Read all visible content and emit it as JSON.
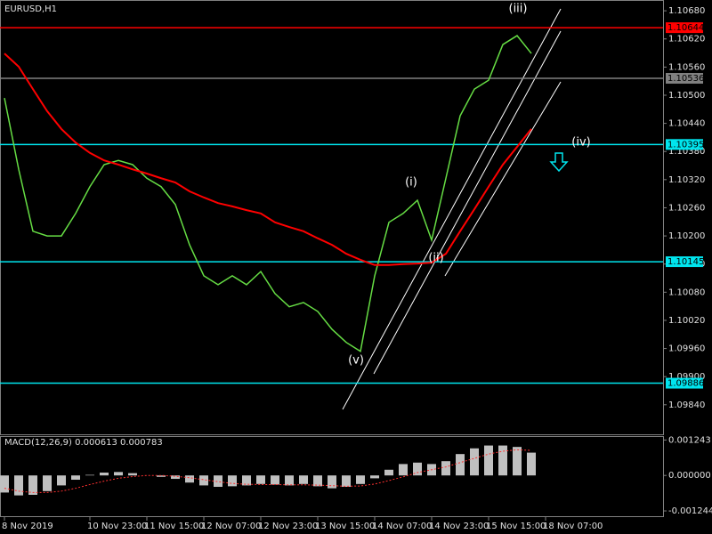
{
  "chart_data": [
    {
      "type": "line",
      "title": "EURUSD,H1",
      "ylim": [
        1.09777,
        1.10703
      ],
      "yticks": [
        {
          "value": 1.1068,
          "label": "1.10680"
        },
        {
          "value": 1.1062,
          "label": "1.10620"
        },
        {
          "value": 1.1056,
          "label": "1.10560"
        },
        {
          "value": 1.105,
          "label": "1.10500"
        },
        {
          "value": 1.1044,
          "label": "1.10440"
        },
        {
          "value": 1.1038,
          "label": "1.10380"
        },
        {
          "value": 1.1032,
          "label": "1.10320"
        },
        {
          "value": 1.1026,
          "label": "1.10260"
        },
        {
          "value": 1.102,
          "label": "1.10200"
        },
        {
          "value": 1.1014,
          "label": "1.10140"
        },
        {
          "value": 1.1008,
          "label": "1.10080"
        },
        {
          "value": 1.1002,
          "label": "1.10020"
        },
        {
          "value": 1.0996,
          "label": "1.09960"
        },
        {
          "value": 1.099,
          "label": "1.09900"
        },
        {
          "value": 1.0984,
          "label": "1.09840"
        }
      ],
      "grid": false,
      "series": [
        {
          "color": "#66dd44",
          "values": [
            1.10494,
            1.10342,
            1.1021,
            1.102,
            1.102,
            1.10248,
            1.10305,
            1.10352,
            1.10361,
            1.10352,
            1.10323,
            1.10305,
            1.10267,
            1.10181,
            1.10115,
            1.10096,
            1.10115,
            1.10096,
            1.10124,
            1.10077,
            1.10049,
            1.10058,
            1.10039,
            1.10001,
            1.09973,
            1.09954,
            1.10115,
            1.10229,
            1.10248,
            1.10276,
            1.10191,
            1.10323,
            1.10456,
            1.10513,
            1.10532,
            1.10608,
            1.10627,
            1.10589,
            null
          ]
        },
        {
          "color": "#ff0000",
          "values": [
            1.10589,
            1.10561,
            1.10513,
            1.10466,
            1.10428,
            1.10399,
            1.10377,
            1.10361,
            1.10352,
            1.10342,
            1.10333,
            1.10323,
            1.10314,
            1.10295,
            1.10282,
            1.1027,
            1.10263,
            1.10255,
            1.10248,
            1.10229,
            1.10219,
            1.1021,
            1.10195,
            1.10181,
            1.10162,
            1.10149,
            1.10138,
            1.10138,
            1.1014,
            1.10141,
            1.10143,
            1.10162,
            1.1021,
            1.10257,
            1.10305,
            1.10352,
            1.1039,
            1.10428,
            null
          ]
        }
      ],
      "levels": [
        {
          "value": 1.10644,
          "color": "#ff0000"
        },
        {
          "value": 1.10536,
          "color": "#808080"
        },
        {
          "value": 1.10395,
          "color": "#00e5ee"
        },
        {
          "value": 1.10145,
          "color": "#00e5ee"
        },
        {
          "value": 1.09886,
          "color": "#00e5ee"
        }
      ],
      "annotations": [
        "(i)",
        "(ii)",
        "(iii)",
        "(iv)",
        "(v)"
      ]
    },
    {
      "type": "bar",
      "title": "MACD(12,26,9) 0.000613 0.000783",
      "categories": [
        "8 Nov 2019",
        null,
        null,
        null,
        null,
        null,
        "10 Nov 23:00",
        null,
        null,
        null,
        "11 Nov 15:00",
        null,
        null,
        null,
        "12 Nov 07:00",
        null,
        null,
        null,
        "12 Nov 23:00",
        null,
        null,
        null,
        "13 Nov 15:00",
        null,
        null,
        null,
        "14 Nov 07:00",
        null,
        null,
        null,
        "14 Nov 23:00",
        null,
        null,
        null,
        "15 Nov 15:00",
        null,
        null,
        null,
        "18 Nov 07:00"
      ],
      "ylim": [
        -0.00143,
        0.00138
      ],
      "yticks": [
        0.001243,
        {
          "value": 0,
          "label": "0.000000"
        },
        -0.001244
      ],
      "color": "#c0c0c0",
      "values": [
        -0.0006,
        -0.0007,
        -0.00068,
        -0.00055,
        -0.00035,
        -0.00015,
        2e-05,
        0.0001,
        0.00012,
        8e-05,
        0.0,
        -5e-05,
        -0.00012,
        -0.00025,
        -0.00035,
        -0.0004,
        -0.00038,
        -0.00035,
        -0.0003,
        -0.00032,
        -0.00035,
        -0.0003,
        -0.00038,
        -0.00045,
        -0.0004,
        -0.0003,
        -0.0001,
        0.0002,
        0.0004,
        0.00045,
        0.0004,
        0.0005,
        0.00075,
        0.00095,
        0.00105,
        0.00105,
        0.001,
        0.0008,
        null
      ],
      "signal": {
        "color": "#ff3030",
        "values": [
          -0.00045,
          -0.00055,
          -0.0006,
          -0.0006,
          -0.00055,
          -0.00045,
          -0.00032,
          -0.0002,
          -0.0001,
          -4e-05,
          0.0,
          0.0,
          -3e-05,
          -8e-05,
          -0.00015,
          -0.00022,
          -0.00028,
          -0.00031,
          -0.00032,
          -0.00032,
          -0.00033,
          -0.00033,
          -0.00034,
          -0.00036,
          -0.00038,
          -0.00037,
          -0.0003,
          -0.00018,
          -5e-05,
          0.0001,
          0.0002,
          0.0003,
          0.00045,
          0.0006,
          0.00075,
          0.00085,
          0.0009,
          0.00088,
          null
        ]
      }
    }
  ]
}
